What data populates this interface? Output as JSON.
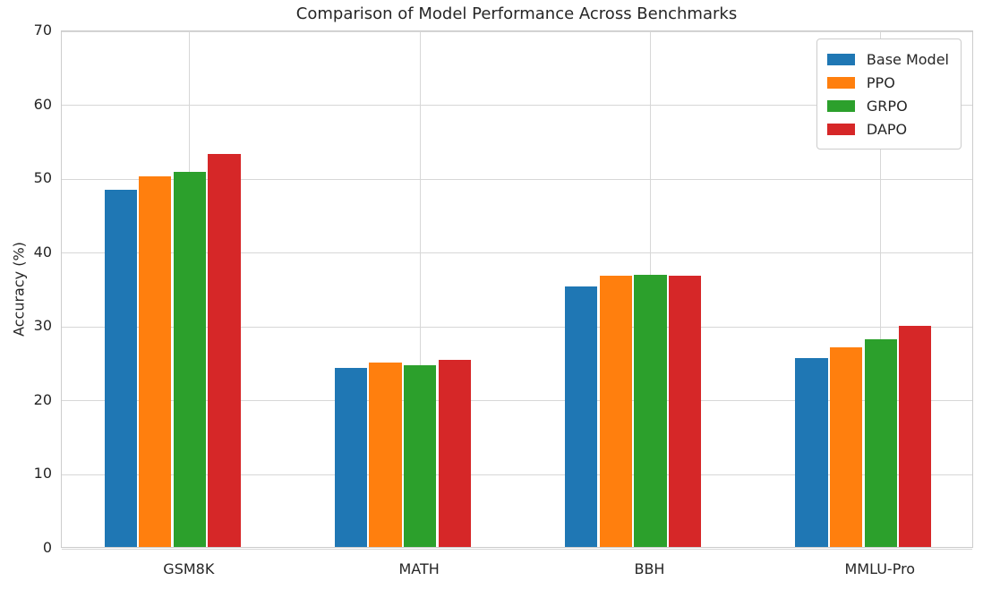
{
  "chart_data": {
    "type": "bar",
    "title": "Comparison of Model Performance Across Benchmarks",
    "xlabel": "",
    "ylabel": "Accuracy (%)",
    "categories": [
      "GSM8K",
      "MATH",
      "BBH",
      "MMLU-Pro"
    ],
    "series": [
      {
        "name": "Base Model",
        "color": "#1f77b4",
        "values": [
          48.3,
          24.2,
          35.2,
          25.6
        ]
      },
      {
        "name": "PPO",
        "color": "#ff7f0e",
        "values": [
          50.2,
          25.0,
          36.7,
          27.0
        ]
      },
      {
        "name": "GRPO",
        "color": "#2ca02c",
        "values": [
          50.7,
          24.6,
          36.8,
          28.1
        ]
      },
      {
        "name": "DAPO",
        "color": "#d62728",
        "values": [
          53.2,
          25.3,
          36.7,
          29.9
        ]
      }
    ],
    "ylim": [
      0,
      70
    ],
    "yticks": [
      0,
      10,
      20,
      30,
      40,
      50,
      60,
      70
    ],
    "grid": true,
    "grid_color": "#d7d7d7",
    "background_color": "#ffffff",
    "text_color": "#262626",
    "legend_position": "upper right"
  }
}
